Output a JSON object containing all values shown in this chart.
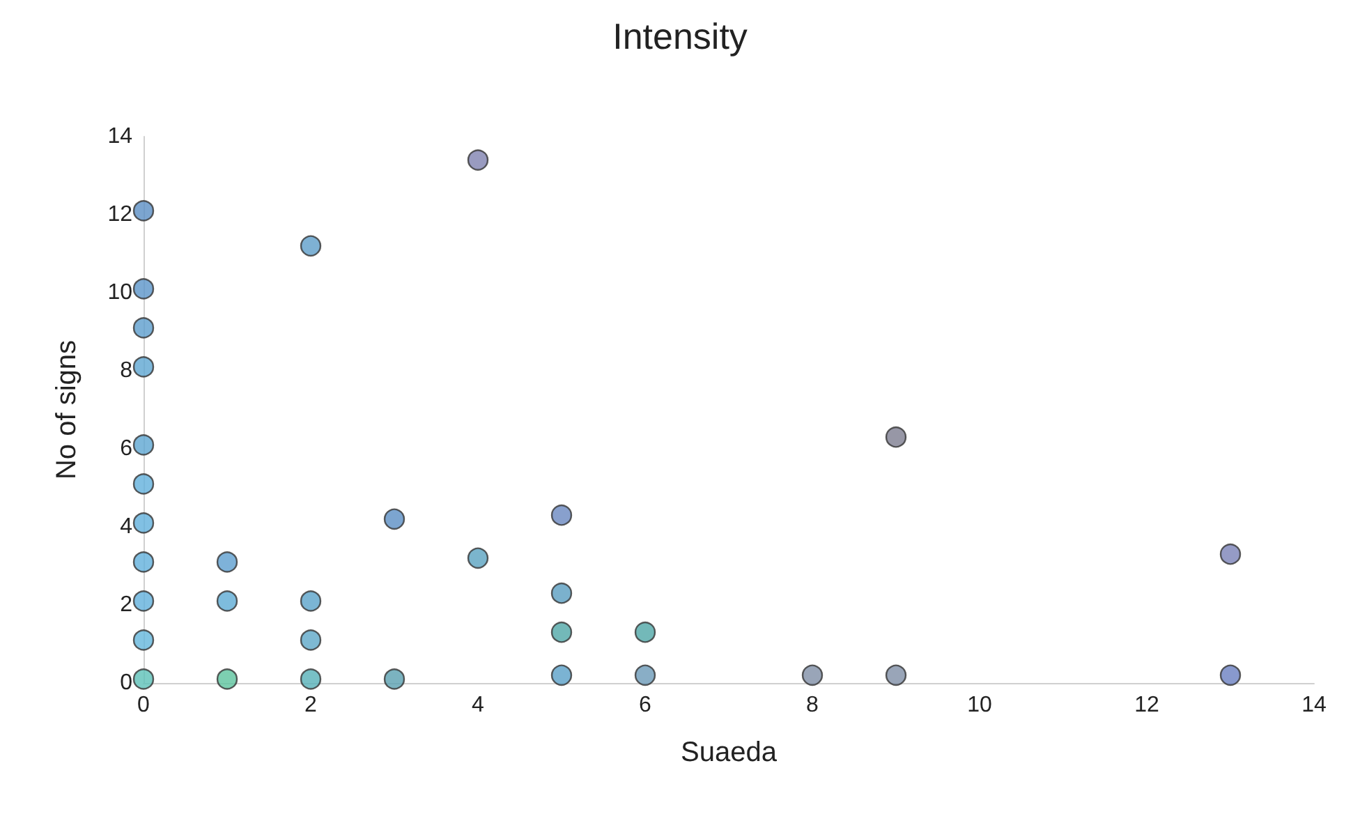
{
  "chart_data": {
    "type": "scatter",
    "title": "Intensity",
    "xlabel": "Suaeda",
    "ylabel": "No of signs",
    "x": [
      0,
      0,
      0,
      0,
      0,
      0,
      0,
      0,
      0,
      0,
      0,
      1,
      1,
      1,
      2,
      2,
      2,
      2,
      3,
      3,
      4,
      4,
      5,
      5,
      5,
      5,
      6,
      6,
      8,
      9,
      9,
      13,
      13
    ],
    "values": [
      12.1,
      10.1,
      9.1,
      8.1,
      6.1,
      5.1,
      4.1,
      3.1,
      2.1,
      1.1,
      0.1,
      3.1,
      2.1,
      0.1,
      11.2,
      2.1,
      1.1,
      0.1,
      4.2,
      0.1,
      13.4,
      3.2,
      4.3,
      2.3,
      1.3,
      0.2,
      1.3,
      0.2,
      0.2,
      6.3,
      0.2,
      3.3,
      0.2
    ],
    "colors": [
      "#5b8fc4",
      "#5b95c9",
      "#5c9dcd",
      "#5ea6d2",
      "#5ea6d2",
      "#62b0dc",
      "#62b0dc",
      "#62b0dc",
      "#62b0dc",
      "#64b7dc",
      "#5cc0b8",
      "#5e9fcf",
      "#5eabd5",
      "#5cc39e",
      "#5e9ec9",
      "#5aa3c9",
      "#5ea8c8",
      "#56b0b8",
      "#5b8fc4",
      "#5aa0b0",
      "#7f82b0",
      "#5aa3c0",
      "#6a88c0",
      "#5a9ec0",
      "#50a8a8",
      "#5aa0c8",
      "#50a8a8",
      "#6c9ab8",
      "#7f8fa6",
      "#7d7d90",
      "#7f8fa6",
      "#7a82b8",
      "#6a80c0"
    ],
    "xlim": [
      0,
      14
    ],
    "xticks": [
      0,
      2,
      4,
      6,
      8,
      10,
      12,
      14
    ],
    "ylim": [
      0,
      14
    ],
    "yticks": [
      0,
      2,
      4,
      6,
      8,
      10,
      12,
      14
    ],
    "marker": "circle"
  }
}
